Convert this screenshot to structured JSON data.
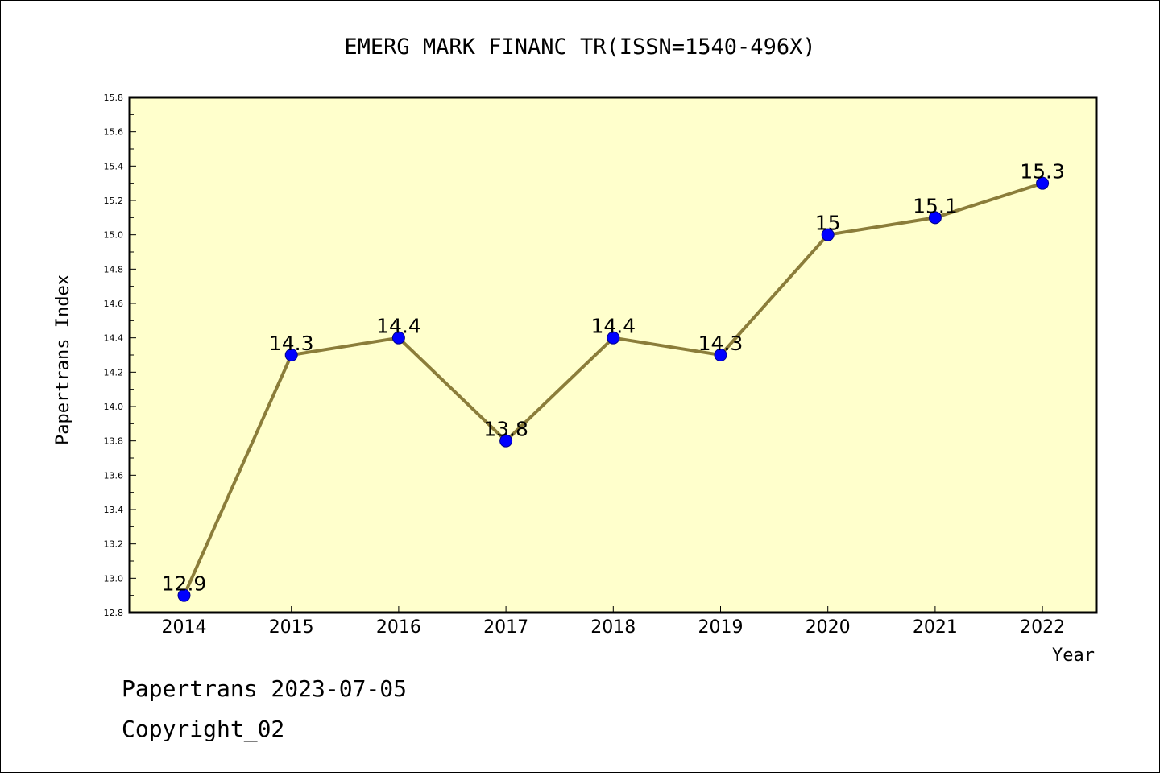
{
  "chart_data": {
    "type": "line",
    "title": "EMERG MARK FINANC TR(ISSN=1540-496X)",
    "xlabel": "Year",
    "ylabel": "Papertrans Index",
    "categories": [
      "2014",
      "2015",
      "2016",
      "2017",
      "2018",
      "2019",
      "2020",
      "2021",
      "2022"
    ],
    "series": [
      {
        "values": [
          12.9,
          14.3,
          14.4,
          13.8,
          14.4,
          14.3,
          15.0,
          15.1,
          15.3
        ],
        "data_labels": [
          "12.9",
          "14.3",
          "14.4",
          "13.8",
          "14.4",
          "14.3",
          "15",
          "15.1",
          "15.3"
        ]
      }
    ],
    "ylim": [
      12.8,
      15.8
    ],
    "yticks": [
      "12.8",
      "13.0",
      "13.2",
      "13.4",
      "13.6",
      "13.8",
      "14.0",
      "14.2",
      "14.4",
      "14.6",
      "14.8",
      "15.0",
      "15.2",
      "15.4",
      "15.6",
      "15.8"
    ],
    "grid": false,
    "colors": {
      "plot_background": "#ffffcc",
      "line": "#8b7d3a",
      "marker": "#0000ff"
    }
  },
  "footer": {
    "date_line": "Papertrans 2023-07-05",
    "copyright": "Copyright_02"
  }
}
